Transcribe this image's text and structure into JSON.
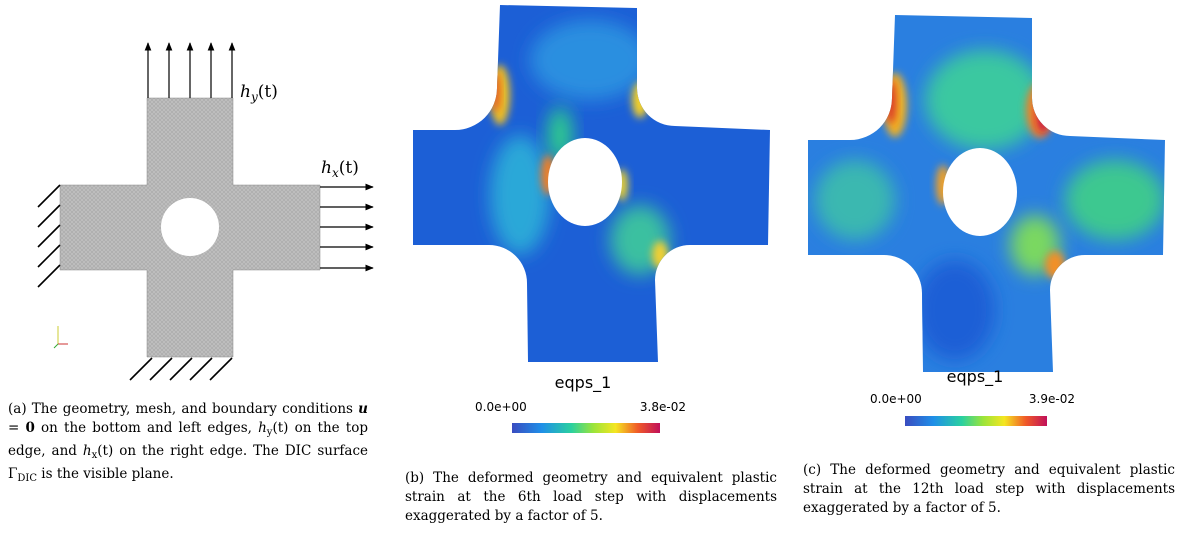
{
  "panel_a": {
    "load_top": {
      "base": "h",
      "sub": "y",
      "arg": "(t)"
    },
    "load_right": {
      "base": "h",
      "sub": "x",
      "arg": "(t)"
    },
    "caption": [
      {
        "text": "(a) The geometry, mesh, and boundary conditions "
      },
      {
        "text": "u",
        "style": "bold-italic"
      },
      {
        "text": " = "
      },
      {
        "text": "0",
        "style": "bold"
      },
      {
        "text": " on the bottom and left edges, "
      },
      {
        "text": "h",
        "style": "italic"
      },
      {
        "text": "y",
        "style": "sub"
      },
      {
        "text": "(t)"
      },
      {
        "text": " on the top edge, and "
      },
      {
        "text": "h",
        "style": "italic"
      },
      {
        "text": "x",
        "style": "sub"
      },
      {
        "text": "(t)"
      },
      {
        "text": " on the right edge. The DIC surface Γ"
      },
      {
        "text": "DIC",
        "style": "sub"
      },
      {
        "text": " is the visible plane."
      }
    ]
  },
  "panel_b": {
    "colorbar_title": "eqps_1",
    "colorbar_min": "0.0e+00",
    "colorbar_max": "3.8e-02",
    "caption": [
      {
        "text": "(b) The deformed geometry and equivalent plastic strain at the 6th load step with displacements exaggerated by a factor of 5."
      }
    ]
  },
  "panel_c": {
    "colorbar_title": "eqps_1",
    "colorbar_min": "0.0e+00",
    "colorbar_max": "3.9e-02",
    "caption": [
      {
        "text": "(c) The deformed geometry and equivalent plastic strain at the 12th load step with displacements exaggerated by a factor of 5."
      }
    ]
  }
}
